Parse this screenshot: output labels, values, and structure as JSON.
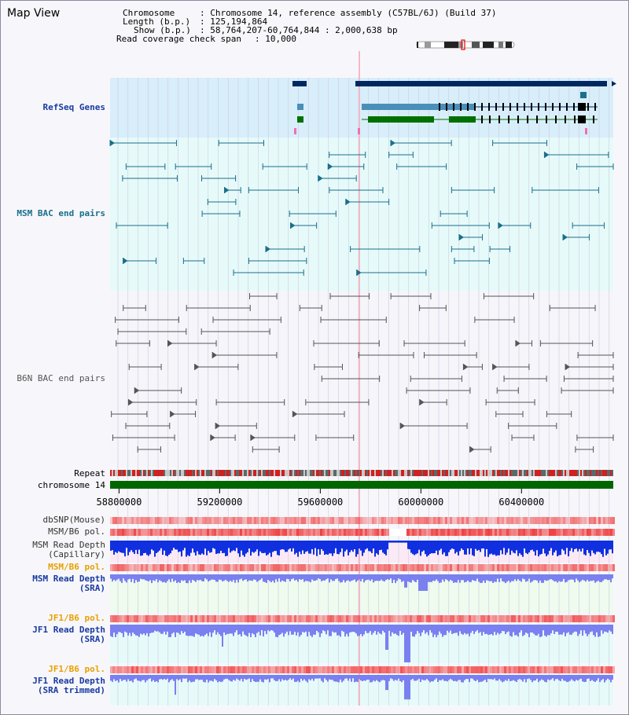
{
  "view_title": "Map View",
  "header": {
    "chromosome_label": "Chromosome",
    "chromosome_value": ": Chromosome 14, reference assembly (C57BL/6J) (Build 37)",
    "length_label": "Length (b.p.)",
    "length_value": ": 125,194,864",
    "show_label": "Show (b.p.)",
    "show_value": ": 58,764,207-60,764,844 : 2,000,638 bp",
    "coverage_label": "Read coverage check span",
    "coverage_value": ": 10,000"
  },
  "tracks": {
    "refseq": "RefSeq Genes",
    "msm_bac": "MSM BAC end pairs",
    "b6n_bac": "B6N BAC end pairs",
    "repeat": "Repeat",
    "chromosome": "chromosome 14",
    "dbsnp": "dbSNP(Mouse)",
    "msm_b6_pol_1": "MSM/B6 pol.",
    "msm_depth_cap_1": "MSM Read Depth",
    "msm_depth_cap_2": "(Capillary)",
    "msm_b6_pol_2": "MSM/B6 pol.",
    "msm_depth_sra_1": "MSM Read Depth",
    "msm_depth_sra_2": "(SRA)",
    "jf1_b6_pol_1": "JF1/B6 pol.",
    "jf1_depth_sra_1": "JF1 Read Depth",
    "jf1_depth_sra_2": "(SRA)",
    "jf1_b6_pol_2": "JF1/B6 pol.",
    "jf1_depth_trim_1": "JF1 Read Depth",
    "jf1_depth_trim_2": "(SRA trimmed)"
  },
  "axis": {
    "ticks": [
      "58800000",
      "59200000",
      "59600000",
      "60000000",
      "60400000"
    ],
    "tick_values": [
      58800000,
      59200000,
      59600000,
      60000000,
      60400000
    ],
    "view_start": 58764207,
    "view_end": 60764844
  },
  "colors": {
    "refseq_bg": "#d8eefa",
    "msm_bg": "#e6fafa",
    "b6n_bg": "#f5f5fa",
    "gene_dark": "#002860",
    "gene_mid": "#4a8fb8",
    "gene_green": "#007000",
    "msm_line": "#1a6f8a",
    "b6n_line": "#555555",
    "chrom_green": "#006600",
    "depth_blue": "#1030e0",
    "depth_light": "#7a80f0",
    "pol_red": "#f04040"
  }
}
